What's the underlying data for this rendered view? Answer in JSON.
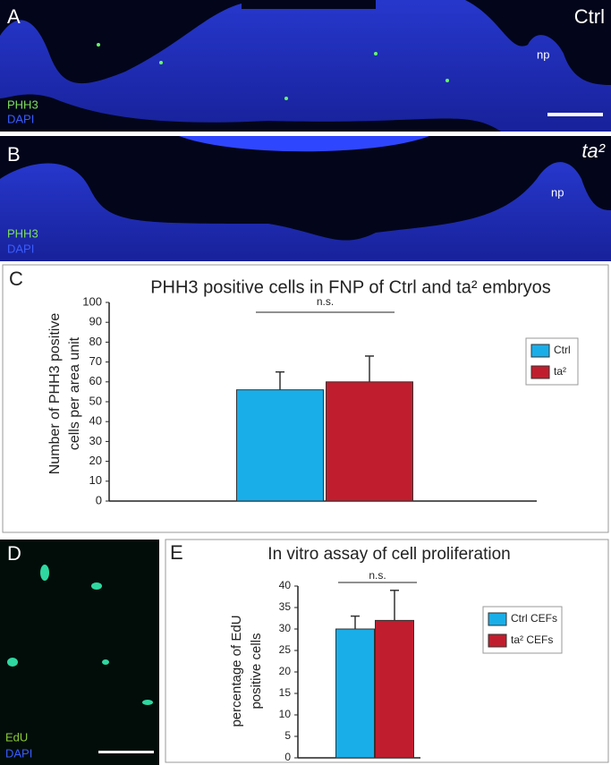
{
  "panels": {
    "a": {
      "letter": "A",
      "condition": "Ctrl",
      "region": "np",
      "stain1": "PHH3",
      "stain2": "DAPI"
    },
    "b": {
      "letter": "B",
      "condition": "ta²",
      "region": "np",
      "stain1": "PHH3",
      "stain2": "DAPI"
    },
    "c": {
      "letter": "C"
    },
    "d": {
      "letter": "D",
      "stain1": "EdU",
      "stain2": "DAPI"
    },
    "e": {
      "letter": "E"
    }
  },
  "chart_data": [
    {
      "type": "bar",
      "title": "PHH3 positive cells in FNP of Ctrl and ta² embryos",
      "y_label": [
        "Number of PHH3 positive",
        "cells per area unit"
      ],
      "categories": [
        null
      ],
      "series": [
        {
          "name": "Ctrl",
          "color": "#1aaee8",
          "values": [
            56
          ],
          "errors": [
            9
          ]
        },
        {
          "name": "ta²",
          "color": "#c01e2e",
          "values": [
            60
          ],
          "errors": [
            13
          ]
        }
      ],
      "ylim": [
        0,
        100
      ],
      "yticks": [
        0,
        10,
        20,
        30,
        40,
        50,
        60,
        70,
        80,
        90,
        100
      ],
      "annotation": "n.s.",
      "legend": "right"
    },
    {
      "type": "bar",
      "title": "In vitro assay of cell proliferation",
      "y_label": [
        "percentage of EdU",
        "positive cells"
      ],
      "categories": [
        null
      ],
      "series": [
        {
          "name": "Ctrl CEFs",
          "color": "#1aaee8",
          "values": [
            30
          ],
          "errors": [
            3
          ]
        },
        {
          "name": "ta² CEFs",
          "color": "#c01e2e",
          "values": [
            32
          ],
          "errors": [
            7
          ]
        }
      ],
      "ylim": [
        0,
        40
      ],
      "yticks": [
        0,
        5,
        10,
        15,
        20,
        25,
        30,
        35,
        40
      ],
      "annotation": "n.s.",
      "legend": "right"
    }
  ]
}
